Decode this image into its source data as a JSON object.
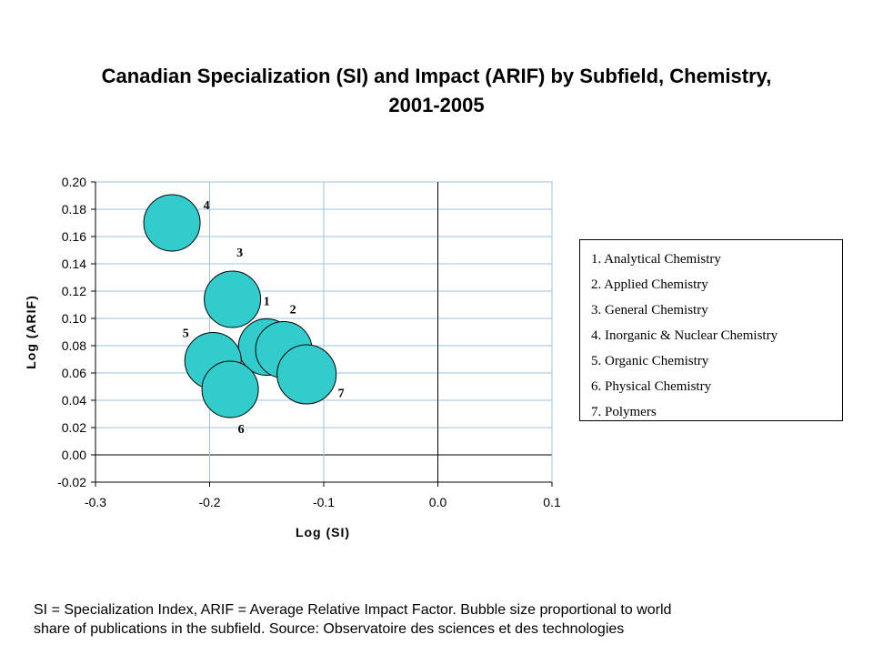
{
  "title": {
    "line1": "Canadian Specialization (SI) and Impact (ARIF) by Subfield, Chemistry,",
    "line2": "2001-2005"
  },
  "legend": [
    "1. Analytical Chemistry",
    "2. Applied Chemistry",
    "3. General Chemistry",
    "4. Inorganic & Nuclear Chemistry",
    "5. Organic Chemistry",
    "6. Physical Chemistry",
    "7. Polymers"
  ],
  "footnote": {
    "line1": "SI = Specialization Index, ARIF = Average Relative Impact Factor. Bubble size proportional to world",
    "line2": "share of publications in the subfield. Source: Observatoire des sciences et des technologies"
  },
  "chart_data": {
    "type": "scatter",
    "subtype": "bubble",
    "xlabel": "Log (SI)",
    "ylabel": "Log (ARIF)",
    "xlim": [
      -0.3,
      0.1
    ],
    "ylim": [
      -0.02,
      0.2
    ],
    "x_ticks": [
      "-0.3",
      "-0.2",
      "-0.1",
      "0.0",
      "0.1"
    ],
    "y_ticks": [
      "-0.02",
      "0.00",
      "0.02",
      "0.04",
      "0.06",
      "0.08",
      "0.10",
      "0.12",
      "0.14",
      "0.16",
      "0.18",
      "0.20"
    ],
    "grid": true,
    "bubble_color": "#33CCCC",
    "points": [
      {
        "label": "1",
        "x": -0.15,
        "y": 0.079,
        "size": 1.0
      },
      {
        "label": "2",
        "x": -0.135,
        "y": 0.077,
        "size": 1.0
      },
      {
        "label": "3",
        "x": -0.18,
        "y": 0.114,
        "size": 1.0
      },
      {
        "label": "4",
        "x": -0.233,
        "y": 0.17,
        "size": 1.0
      },
      {
        "label": "5",
        "x": -0.197,
        "y": 0.069,
        "size": 1.0
      },
      {
        "label": "6",
        "x": -0.182,
        "y": 0.048,
        "size": 1.0
      },
      {
        "label": "7",
        "x": -0.115,
        "y": 0.059,
        "size": 1.1
      }
    ]
  }
}
